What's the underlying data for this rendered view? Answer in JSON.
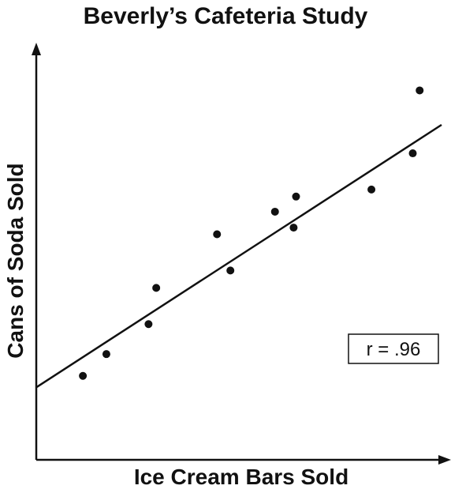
{
  "chart_data": {
    "type": "scatter",
    "title": "Beverly’s Cafeteria Study",
    "xlabel": "Ice Cream Bars Sold",
    "ylabel": "Cans of Soda Sold",
    "xlim": [
      0,
      100
    ],
    "ylim": [
      0,
      100
    ],
    "grid": false,
    "points": [
      {
        "x": 11.5,
        "y": 22.7
      },
      {
        "x": 17.3,
        "y": 28.6
      },
      {
        "x": 27.7,
        "y": 36.7
      },
      {
        "x": 29.6,
        "y": 46.5
      },
      {
        "x": 44.6,
        "y": 61.0
      },
      {
        "x": 47.9,
        "y": 51.2
      },
      {
        "x": 58.9,
        "y": 67.1
      },
      {
        "x": 63.5,
        "y": 62.8
      },
      {
        "x": 64.1,
        "y": 71.2
      },
      {
        "x": 82.7,
        "y": 73.1
      },
      {
        "x": 92.9,
        "y": 82.9
      },
      {
        "x": 94.6,
        "y": 99.9
      }
    ],
    "trendline": {
      "x": [
        0,
        100
      ],
      "y": [
        19.6,
        90.6
      ]
    },
    "annotation": "r = .96",
    "annotation_position": "right-middle"
  }
}
